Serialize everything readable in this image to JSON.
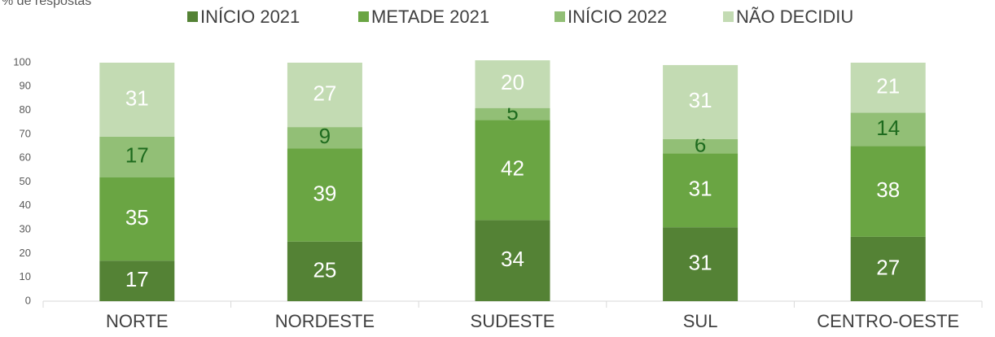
{
  "chart_data": {
    "type": "stacked_bar",
    "y_axis_label": "% de respostas",
    "categories": [
      "NORTE",
      "NORDESTE",
      "SUDESTE",
      "SUL",
      "CENTRO-OESTE"
    ],
    "series": [
      {
        "name": "INÍCIO 2021",
        "color": "#548235",
        "label_color": "#ffffff",
        "values": [
          17,
          25,
          34,
          31,
          27
        ]
      },
      {
        "name": "METADE 2021",
        "color": "#6aa543",
        "label_color": "#ffffff",
        "values": [
          35,
          39,
          42,
          31,
          38
        ]
      },
      {
        "name": "INÍCIO 2022",
        "color": "#92bf76",
        "label_color": "#1e6b1e",
        "values": [
          17,
          9,
          5,
          6,
          14
        ]
      },
      {
        "name": "NÃO DECIDIU",
        "color": "#c3dbb3",
        "label_color": "#ffffff",
        "values": [
          31,
          27,
          20,
          31,
          21
        ]
      }
    ],
    "ylim": [
      0,
      100
    ],
    "yticks": [
      0,
      10,
      20,
      30,
      40,
      50,
      60,
      70,
      80,
      90,
      100
    ],
    "grid": false,
    "legend": "top"
  }
}
